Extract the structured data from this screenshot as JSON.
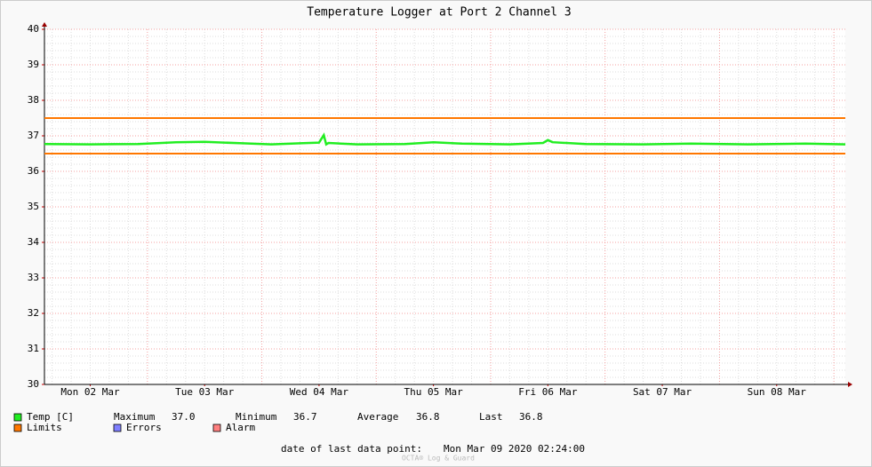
{
  "chart_data": {
    "type": "line",
    "title": "Temperature Logger at Port 2 Channel 3",
    "xlim": [
      "2020-03-02T02:24",
      "2020-03-09T02:24"
    ],
    "xticks": [
      {
        "value": "2020-03-02T12:00",
        "label": "Mon 02 Mar"
      },
      {
        "value": "2020-03-03T12:00",
        "label": "Tue 03 Mar"
      },
      {
        "value": "2020-03-04T12:00",
        "label": "Wed 04 Mar"
      },
      {
        "value": "2020-03-05T12:00",
        "label": "Thu 05 Mar"
      },
      {
        "value": "2020-03-06T12:00",
        "label": "Fri 06 Mar"
      },
      {
        "value": "2020-03-07T12:00",
        "label": "Sat 07 Mar"
      },
      {
        "value": "2020-03-08T12:00",
        "label": "Sun 08 Mar"
      }
    ],
    "ylim": [
      30,
      40
    ],
    "yticks": [
      30,
      31,
      32,
      33,
      34,
      35,
      36,
      37,
      38,
      39,
      40
    ],
    "grid": true,
    "x": [
      "2020-03-02T02:24",
      "2020-03-02T12:00",
      "2020-03-02T22:00",
      "2020-03-03T06:00",
      "2020-03-03T12:00",
      "2020-03-03T20:00",
      "2020-03-04T02:00",
      "2020-03-04T08:00",
      "2020-03-04T12:00",
      "2020-03-04T13:00",
      "2020-03-04T13:30",
      "2020-03-04T14:00",
      "2020-03-04T20:00",
      "2020-03-05T06:00",
      "2020-03-05T12:00",
      "2020-03-05T18:00",
      "2020-03-06T04:00",
      "2020-03-06T11:00",
      "2020-03-06T12:00",
      "2020-03-06T13:00",
      "2020-03-06T20:00",
      "2020-03-07T08:00",
      "2020-03-07T18:00",
      "2020-03-08T06:00",
      "2020-03-08T18:00",
      "2020-03-09T02:24"
    ],
    "series": [
      {
        "name": "Temp [C]",
        "color": "#22ee22",
        "values": [
          36.77,
          36.76,
          36.77,
          36.82,
          36.83,
          36.79,
          36.76,
          36.79,
          36.81,
          37.02,
          36.76,
          36.8,
          36.76,
          36.77,
          36.82,
          36.78,
          36.76,
          36.8,
          36.88,
          36.82,
          36.77,
          36.76,
          36.78,
          36.76,
          36.78,
          36.76
        ]
      },
      {
        "name": "Limits",
        "color": "#ff7700",
        "lines": [
          37.5,
          36.5
        ]
      },
      {
        "name": "Errors",
        "color": "#7f7fff"
      },
      {
        "name": "Alarm",
        "color": "#ff7f7f"
      }
    ],
    "stats": [
      {
        "label": "Maximum",
        "value": "37.0"
      },
      {
        "label": "Minimum",
        "value": "36.7"
      },
      {
        "label": "Average",
        "value": "36.8"
      },
      {
        "label": "Last",
        "value": "36.8"
      }
    ],
    "footer": {
      "label": "date of last data point:",
      "value": "Mon Mar 09 2020 02:24:00"
    },
    "watermark": "OCTA® Log & Guard"
  }
}
